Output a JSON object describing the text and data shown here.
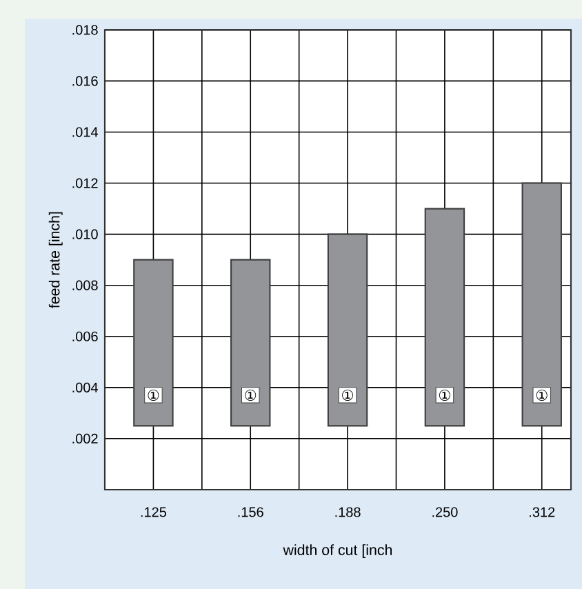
{
  "chart_data": {
    "type": "bar",
    "xlabel": "width of cut [inch",
    "ylabel": "feed rate [inch]",
    "categories": [
      ".125",
      ".156",
      ".188",
      ".250",
      ".312"
    ],
    "base": [
      0.0025,
      0.0025,
      0.0025,
      0.0025,
      0.0025
    ],
    "values": [
      0.0065,
      0.0065,
      0.0075,
      0.0085,
      0.0095
    ],
    "color": "#939598",
    "ylim": [
      0,
      0.018
    ],
    "yticks": [
      {
        "value": 0.002,
        "label": ".002"
      },
      {
        "value": 0.004,
        "label": ".004"
      },
      {
        "value": 0.006,
        "label": ".006"
      },
      {
        "value": 0.008,
        "label": ".008"
      },
      {
        "value": 0.01,
        "label": ".010"
      },
      {
        "value": 0.012,
        "label": ".012"
      },
      {
        "value": 0.014,
        "label": ".014"
      },
      {
        "value": 0.016,
        "label": ".016"
      },
      {
        "value": 0.018,
        "label": ".018"
      }
    ],
    "grid": true,
    "annotations": [
      {
        "text": "①",
        "x": ".125",
        "y": 0.0037
      },
      {
        "text": "①",
        "x": ".156",
        "y": 0.0037
      },
      {
        "text": "①",
        "x": ".188",
        "y": 0.0037
      },
      {
        "text": "①",
        "x": ".250",
        "y": 0.0037
      },
      {
        "text": "①",
        "x": ".312",
        "y": 0.0037
      }
    ]
  }
}
